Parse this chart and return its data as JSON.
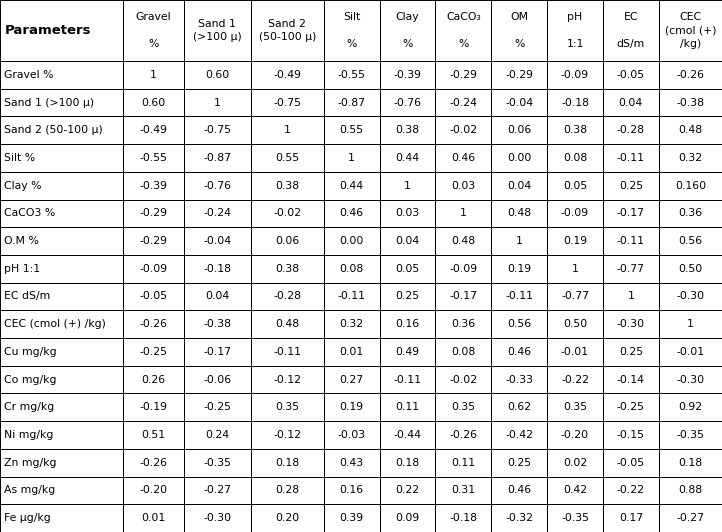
{
  "col_headers": [
    [
      "Gravel",
      "%"
    ],
    [
      "Sand 1",
      "(>100 μ)"
    ],
    [
      "Sand 2",
      "(50-100 μ)"
    ],
    [
      "Silt",
      "%"
    ],
    [
      "Clay",
      "%"
    ],
    [
      "CaCO₃",
      "%"
    ],
    [
      "OM",
      "%"
    ],
    [
      "pH",
      "1:1"
    ],
    [
      "EC",
      "dS/m"
    ],
    [
      "CEC",
      "(cmol (+)",
      "/kg)"
    ]
  ],
  "row_headers": [
    "Gravel %",
    "Sand 1 (>100 μ)",
    "Sand 2 (50-100 μ)",
    "Silt %",
    "Clay %",
    "CaCO3 %",
    "O.M %",
    "pH 1:1",
    "EC dS/m",
    "CEC (cmol (+) /kg)",
    "Cu mg/kg",
    "Co mg/kg",
    "Cr mg/kg",
    "Ni mg/kg",
    "Zn mg/kg",
    "As mg/kg",
    "Fe μg/kg"
  ],
  "table_data": [
    [
      "1",
      "0.60",
      "-0.49",
      "-0.55",
      "-0.39",
      "-0.29",
      "-0.29",
      "-0.09",
      "-0.05",
      "-0.26"
    ],
    [
      "0.60",
      "1",
      "-0.75",
      "-0.87",
      "-0.76",
      "-0.24",
      "-0.04",
      "-0.18",
      "0.04",
      "-0.38"
    ],
    [
      "-0.49",
      "-0.75",
      "1",
      "0.55",
      "0.38",
      "-0.02",
      "0.06",
      "0.38",
      "-0.28",
      "0.48"
    ],
    [
      "-0.55",
      "-0.87",
      "0.55",
      "1",
      "0.44",
      "0.46",
      "0.00",
      "0.08",
      "-0.11",
      "0.32"
    ],
    [
      "-0.39",
      "-0.76",
      "0.38",
      "0.44",
      "1",
      "0.03",
      "0.04",
      "0.05",
      "0.25",
      "0.160"
    ],
    [
      "-0.29",
      "-0.24",
      "-0.02",
      "0.46",
      "0.03",
      "1",
      "0.48",
      "-0.09",
      "-0.17",
      "0.36"
    ],
    [
      "-0.29",
      "-0.04",
      "0.06",
      "0.00",
      "0.04",
      "0.48",
      "1",
      "0.19",
      "-0.11",
      "0.56"
    ],
    [
      "-0.09",
      "-0.18",
      "0.38",
      "0.08",
      "0.05",
      "-0.09",
      "0.19",
      "1",
      "-0.77",
      "0.50"
    ],
    [
      "-0.05",
      "0.04",
      "-0.28",
      "-0.11",
      "0.25",
      "-0.17",
      "-0.11",
      "-0.77",
      "1",
      "-0.30"
    ],
    [
      "-0.26",
      "-0.38",
      "0.48",
      "0.32",
      "0.16",
      "0.36",
      "0.56",
      "0.50",
      "-0.30",
      "1"
    ],
    [
      "-0.25",
      "-0.17",
      "-0.11",
      "0.01",
      "0.49",
      "0.08",
      "0.46",
      "-0.01",
      "0.25",
      "-0.01"
    ],
    [
      "0.26",
      "-0.06",
      "-0.12",
      "0.27",
      "-0.11",
      "-0.02",
      "-0.33",
      "-0.22",
      "-0.14",
      "-0.30"
    ],
    [
      "-0.19",
      "-0.25",
      "0.35",
      "0.19",
      "0.11",
      "0.35",
      "0.62",
      "0.35",
      "-0.25",
      "0.92"
    ],
    [
      "0.51",
      "0.24",
      "-0.12",
      "-0.03",
      "-0.44",
      "-0.26",
      "-0.42",
      "-0.20",
      "-0.15",
      "-0.35"
    ],
    [
      "-0.26",
      "-0.35",
      "0.18",
      "0.43",
      "0.18",
      "0.11",
      "0.25",
      "0.02",
      "-0.05",
      "0.18"
    ],
    [
      "-0.20",
      "-0.27",
      "0.28",
      "0.16",
      "0.22",
      "0.31",
      "0.46",
      "0.42",
      "-0.22",
      "0.88"
    ],
    [
      "0.01",
      "-0.30",
      "0.20",
      "0.39",
      "0.09",
      "-0.18",
      "-0.32",
      "-0.35",
      "0.17",
      "-0.27"
    ]
  ],
  "bg_color": "#ffffff",
  "line_color": "#000000",
  "text_color": "#000000",
  "data_font_size": 7.8,
  "header_font_size": 7.8,
  "param_font_size": 9.5
}
